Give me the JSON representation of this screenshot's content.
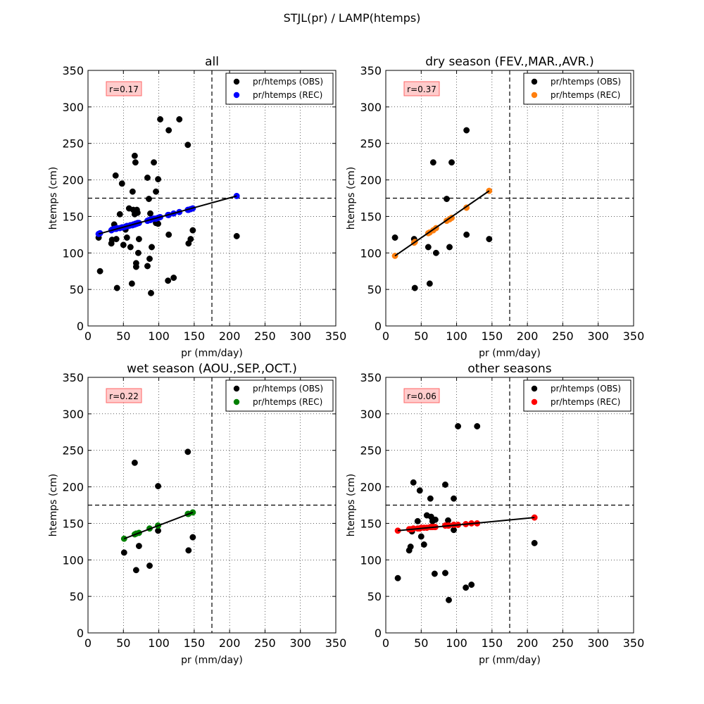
{
  "figure": {
    "title": "STJL(pr) / LAMP(htemps)"
  },
  "chart_data": [
    {
      "type": "scatter",
      "title": "all",
      "xlabel": "pr (mm/day)",
      "ylabel": "htemps (cm)",
      "xlim": [
        0,
        350
      ],
      "ylim": [
        0,
        350
      ],
      "xticks": [
        0,
        50,
        100,
        150,
        200,
        250,
        300,
        350
      ],
      "yticks": [
        0,
        50,
        100,
        150,
        200,
        250,
        300,
        350
      ],
      "grid": true,
      "legend_position": "top-right",
      "threshold_lines": {
        "x": 175,
        "y": 175
      },
      "annotation": "r=0.17",
      "series": [
        {
          "name": "pr/htemps (OBS)",
          "color": "#000000",
          "points": [
            [
              15,
              121
            ],
            [
              17,
              75
            ],
            [
              33,
              113
            ],
            [
              34,
              118
            ],
            [
              37,
              139
            ],
            [
              39,
              206
            ],
            [
              40,
              119
            ],
            [
              41,
              52
            ],
            [
              45,
              153
            ],
            [
              48,
              195
            ],
            [
              50,
              111
            ],
            [
              53,
              132
            ],
            [
              55,
              121
            ],
            [
              58,
              161
            ],
            [
              60,
              108
            ],
            [
              62,
              58
            ],
            [
              63,
              184
            ],
            [
              64,
              159
            ],
            [
              66,
              153
            ],
            [
              66,
              233
            ],
            [
              67,
              224
            ],
            [
              68,
              86
            ],
            [
              68,
              81
            ],
            [
              69,
              159
            ],
            [
              70,
              155
            ],
            [
              71,
              100
            ],
            [
              72,
              119
            ],
            [
              84,
              82
            ],
            [
              84,
              203
            ],
            [
              86,
              174
            ],
            [
              87,
              92
            ],
            [
              88,
              154
            ],
            [
              89,
              45
            ],
            [
              90,
              108
            ],
            [
              93,
              224
            ],
            [
              96,
              184
            ],
            [
              96,
              141
            ],
            [
              99,
              140
            ],
            [
              99,
              201
            ],
            [
              102,
              283
            ],
            [
              113,
              62
            ],
            [
              114,
              125
            ],
            [
              114,
              268
            ],
            [
              121,
              66
            ],
            [
              129,
              283
            ],
            [
              141,
              248
            ],
            [
              142,
              113
            ],
            [
              145,
              119
            ],
            [
              148,
              131
            ],
            [
              210,
              123
            ]
          ]
        },
        {
          "name": "pr/htemps (REC)",
          "color": "#0000ff",
          "points": [
            [
              15,
              126
            ],
            [
              17,
              127
            ],
            [
              33,
              131
            ],
            [
              34,
              132
            ],
            [
              37,
              133
            ],
            [
              39,
              133
            ],
            [
              40,
              133
            ],
            [
              41,
              134
            ],
            [
              45,
              134
            ],
            [
              48,
              135
            ],
            [
              50,
              135
            ],
            [
              53,
              136
            ],
            [
              55,
              137
            ],
            [
              58,
              137
            ],
            [
              60,
              138
            ],
            [
              62,
              138
            ],
            [
              63,
              138
            ],
            [
              64,
              139
            ],
            [
              66,
              139
            ],
            [
              66,
              139
            ],
            [
              67,
              140
            ],
            [
              68,
              140
            ],
            [
              68,
              140
            ],
            [
              69,
              140
            ],
            [
              70,
              141
            ],
            [
              71,
              141
            ],
            [
              72,
              141
            ],
            [
              84,
              144
            ],
            [
              84,
              144
            ],
            [
              86,
              145
            ],
            [
              87,
              145
            ],
            [
              88,
              145
            ],
            [
              89,
              146
            ],
            [
              90,
              146
            ],
            [
              93,
              147
            ],
            [
              96,
              147
            ],
            [
              96,
              147
            ],
            [
              99,
              148
            ],
            [
              99,
              148
            ],
            [
              102,
              149
            ],
            [
              113,
              152
            ],
            [
              114,
              152
            ],
            [
              114,
              152
            ],
            [
              121,
              154
            ],
            [
              129,
              156
            ],
            [
              141,
              159
            ],
            [
              142,
              159
            ],
            [
              145,
              160
            ],
            [
              148,
              161
            ],
            [
              210,
              178
            ]
          ]
        }
      ],
      "fit_line": [
        [
          15,
          126
        ],
        [
          210,
          178
        ]
      ]
    },
    {
      "type": "scatter",
      "title": "dry season (FEV.,MAR.,AVR.)",
      "xlabel": "pr (mm/day)",
      "ylabel": "htemps (cm)",
      "xlim": [
        0,
        350
      ],
      "ylim": [
        0,
        350
      ],
      "xticks": [
        0,
        50,
        100,
        150,
        200,
        250,
        300,
        350
      ],
      "yticks": [
        0,
        50,
        100,
        150,
        200,
        250,
        300,
        350
      ],
      "grid": true,
      "legend_position": "top-right",
      "threshold_lines": {
        "x": 175,
        "y": 175
      },
      "annotation": "r=0.37",
      "series": [
        {
          "name": "pr/htemps (OBS)",
          "color": "#000000",
          "points": [
            [
              13,
              121
            ],
            [
              40,
              119
            ],
            [
              41,
              52
            ],
            [
              60,
              108
            ],
            [
              62,
              58
            ],
            [
              67,
              224
            ],
            [
              71,
              100
            ],
            [
              86,
              174
            ],
            [
              90,
              108
            ],
            [
              93,
              224
            ],
            [
              114,
              125
            ],
            [
              114,
              268
            ],
            [
              146,
              119
            ]
          ]
        },
        {
          "name": "pr/htemps (REC)",
          "color": "#ff7f0e",
          "points": [
            [
              13,
              96
            ],
            [
              40,
              114
            ],
            [
              41,
              115
            ],
            [
              60,
              127
            ],
            [
              62,
              128
            ],
            [
              67,
              131
            ],
            [
              71,
              134
            ],
            [
              86,
              144
            ],
            [
              90,
              146
            ],
            [
              93,
              148
            ],
            [
              114,
              162
            ],
            [
              114,
              162
            ],
            [
              146,
              185
            ]
          ]
        }
      ],
      "fit_line": [
        [
          13,
          96
        ],
        [
          146,
          185
        ]
      ]
    },
    {
      "type": "scatter",
      "title": "wet season (AOU.,SEP.,OCT.)",
      "xlabel": "pr (mm/day)",
      "ylabel": "htemps (cm)",
      "xlim": [
        0,
        350
      ],
      "ylim": [
        0,
        350
      ],
      "xticks": [
        0,
        50,
        100,
        150,
        200,
        250,
        300,
        350
      ],
      "yticks": [
        0,
        50,
        100,
        150,
        200,
        250,
        300,
        350
      ],
      "grid": true,
      "legend_position": "top-right",
      "threshold_lines": {
        "x": 175,
        "y": 175
      },
      "annotation": "r=0.22",
      "series": [
        {
          "name": "pr/htemps (OBS)",
          "color": "#000000",
          "points": [
            [
              51,
              110
            ],
            [
              66,
              233
            ],
            [
              68,
              86
            ],
            [
              72,
              119
            ],
            [
              87,
              92
            ],
            [
              99,
              140
            ],
            [
              99,
              201
            ],
            [
              141,
              248
            ],
            [
              142,
              113
            ],
            [
              148,
              131
            ]
          ]
        },
        {
          "name": "pr/htemps (REC)",
          "color": "#008000",
          "points": [
            [
              51,
              129
            ],
            [
              66,
              135
            ],
            [
              68,
              136
            ],
            [
              72,
              137
            ],
            [
              87,
              143
            ],
            [
              99,
              147
            ],
            [
              99,
              147
            ],
            [
              141,
              163
            ],
            [
              142,
              163
            ],
            [
              148,
              165
            ]
          ]
        }
      ],
      "fit_line": [
        [
          51,
          129
        ],
        [
          148,
          165
        ]
      ]
    },
    {
      "type": "scatter",
      "title": "other seasons",
      "xlabel": "pr (mm/day)",
      "ylabel": "htemps (cm)",
      "xlim": [
        0,
        350
      ],
      "ylim": [
        0,
        350
      ],
      "xticks": [
        0,
        50,
        100,
        150,
        200,
        250,
        300,
        350
      ],
      "yticks": [
        0,
        50,
        100,
        150,
        200,
        250,
        300,
        350
      ],
      "grid": true,
      "legend_position": "top-right",
      "threshold_lines": {
        "x": 175,
        "y": 175
      },
      "annotation": "r=0.06",
      "series": [
        {
          "name": "pr/htemps (OBS)",
          "color": "#000000",
          "points": [
            [
              17,
              75
            ],
            [
              33,
              113
            ],
            [
              35,
              118
            ],
            [
              37,
              139
            ],
            [
              39,
              206
            ],
            [
              45,
              153
            ],
            [
              48,
              195
            ],
            [
              50,
              132
            ],
            [
              54,
              121
            ],
            [
              58,
              161
            ],
            [
              63,
              184
            ],
            [
              64,
              159
            ],
            [
              66,
              153
            ],
            [
              69,
              81
            ],
            [
              70,
              155
            ],
            [
              84,
              82
            ],
            [
              84,
              203
            ],
            [
              88,
              154
            ],
            [
              89,
              45
            ],
            [
              96,
              184
            ],
            [
              96,
              141
            ],
            [
              102,
              283
            ],
            [
              113,
              62
            ],
            [
              121,
              66
            ],
            [
              129,
              283
            ],
            [
              210,
              123
            ]
          ]
        },
        {
          "name": "pr/htemps (REC)",
          "color": "#ff0000",
          "points": [
            [
              17,
              140
            ],
            [
              33,
              142
            ],
            [
              35,
              142
            ],
            [
              37,
              142
            ],
            [
              39,
              143
            ],
            [
              45,
              143
            ],
            [
              48,
              143
            ],
            [
              50,
              144
            ],
            [
              54,
              144
            ],
            [
              58,
              144
            ],
            [
              63,
              145
            ],
            [
              64,
              145
            ],
            [
              66,
              145
            ],
            [
              69,
              145
            ],
            [
              70,
              145
            ],
            [
              84,
              147
            ],
            [
              84,
              147
            ],
            [
              88,
              147
            ],
            [
              89,
              147
            ],
            [
              96,
              148
            ],
            [
              96,
              148
            ],
            [
              102,
              148
            ],
            [
              113,
              149
            ],
            [
              121,
              150
            ],
            [
              129,
              150
            ],
            [
              210,
              158
            ]
          ]
        }
      ],
      "fit_line": [
        [
          17,
          140
        ],
        [
          210,
          158
        ]
      ]
    }
  ]
}
